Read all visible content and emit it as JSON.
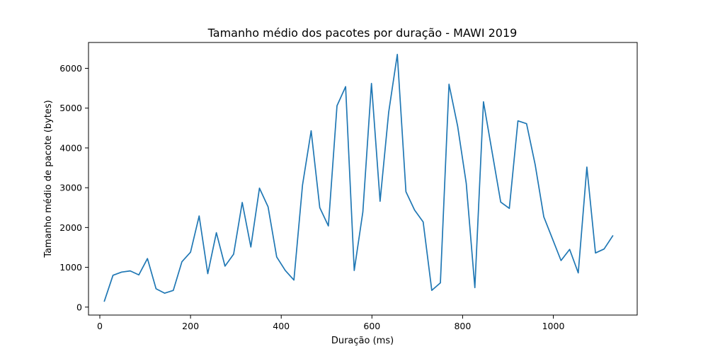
{
  "chart_data": {
    "type": "line",
    "title": "Tamanho médio dos pacotes por duração - MAWI 2019",
    "xlabel": "Duração (ms)",
    "ylabel": "Tamanho médio de pacote (bytes)",
    "xlim": [
      -25,
      1185
    ],
    "ylim": [
      -200,
      6650
    ],
    "xticks": [
      0,
      200,
      400,
      600,
      800,
      1000
    ],
    "yticks": [
      0,
      1000,
      2000,
      3000,
      4000,
      5000,
      6000
    ],
    "grid": false,
    "color": "#1f77b4",
    "series": [
      {
        "x": [
          10,
          29,
          48,
          67,
          86,
          105,
          124,
          143,
          162,
          181,
          200,
          219,
          238,
          257,
          276,
          295,
          314,
          333,
          352,
          371,
          390,
          409,
          428,
          447,
          466,
          485,
          504,
          523,
          542,
          561,
          580,
          599,
          618,
          637,
          656,
          675,
          694,
          713,
          732,
          751,
          770,
          789,
          808,
          827,
          846,
          865,
          884,
          903,
          922,
          941,
          960,
          979,
          998,
          1017,
          1036,
          1055,
          1074,
          1093,
          1112,
          1131
        ],
        "y": [
          150,
          800,
          880,
          910,
          810,
          1220,
          460,
          350,
          420,
          1140,
          1380,
          2290,
          840,
          1870,
          1030,
          1330,
          2630,
          1510,
          2990,
          2520,
          1260,
          920,
          680,
          3070,
          4430,
          2500,
          2040,
          5060,
          5540,
          920,
          2390,
          5620,
          2660,
          4900,
          6350,
          2900,
          2440,
          2140,
          420,
          610,
          5600,
          4550,
          3110,
          490,
          5160,
          3900,
          2640,
          2480,
          4680,
          4610,
          3580,
          2270,
          1720,
          1170,
          1450,
          860,
          3520,
          1360,
          1460,
          1790
        ]
      }
    ]
  }
}
